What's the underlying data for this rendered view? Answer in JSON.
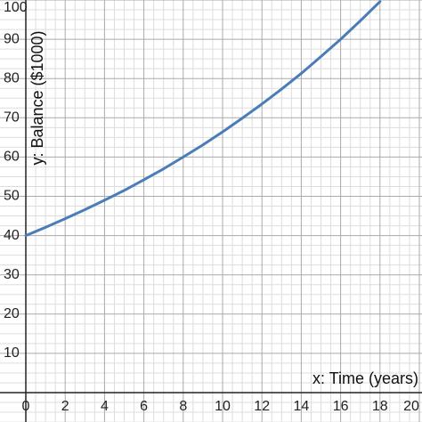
{
  "chart_data": {
    "type": "line",
    "x_label": "x: Time (years)",
    "y_label": "y: Balance ($1000)",
    "x": [
      0,
      1,
      2,
      3,
      4,
      5,
      6,
      7,
      8,
      9,
      10,
      11,
      12,
      13,
      14,
      15,
      16,
      17,
      18
    ],
    "series": [
      {
        "color": "#4a7db8",
        "values": [
          40,
          42.1,
          44.3,
          46.6,
          49.0,
          51.5,
          54.2,
          57.0,
          60.0,
          63.1,
          66.4,
          69.9,
          73.5,
          77.3,
          81.3,
          85.6,
          90.0,
          94.7,
          99.6
        ]
      }
    ],
    "xlim": [
      0,
      20
    ],
    "ylim": [
      0,
      100
    ],
    "xticks": [
      0,
      2,
      4,
      6,
      8,
      10,
      12,
      14,
      16,
      18,
      20
    ],
    "yticks": [
      10,
      20,
      30,
      40,
      50,
      60,
      70,
      80,
      90,
      100
    ],
    "grid": true
  }
}
